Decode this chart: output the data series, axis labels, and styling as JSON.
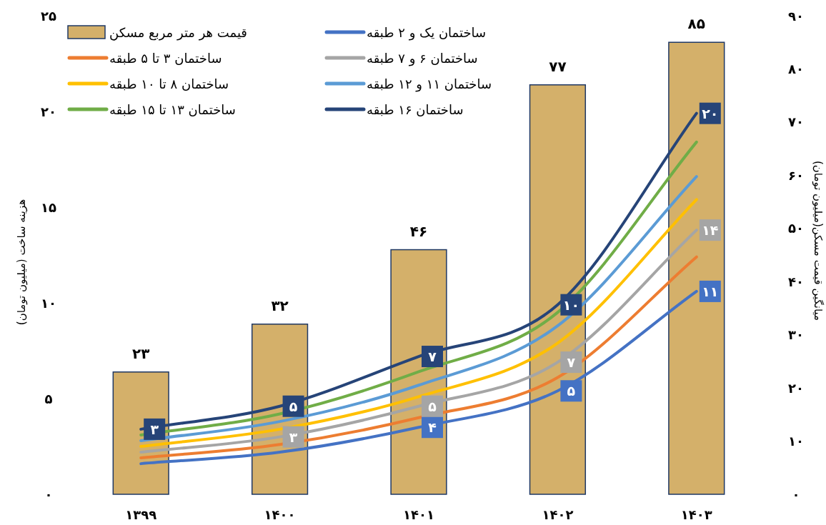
{
  "chart_data": {
    "type": "line",
    "categories": [
      "۱۳۹۹",
      "۱۴۰۰",
      "۱۴۰۱",
      "۱۴۰۲",
      "۱۴۰۳"
    ],
    "ylabel": "هزینه ساخت (میلیون تومان)",
    "y2label": "میانگین قیمت مسکن(میلیون تومان)",
    "ylim": [
      0,
      25
    ],
    "yticks": [
      {
        "value": 0,
        "label": "۰"
      },
      {
        "value": 5,
        "label": "۵"
      },
      {
        "value": 10,
        "label": "۱۰"
      },
      {
        "value": 15,
        "label": "۱۵"
      },
      {
        "value": 20,
        "label": "۲۰"
      },
      {
        "value": 25,
        "label": "۲۵"
      }
    ],
    "y2lim": [
      0,
      90
    ],
    "y2ticks": [
      {
        "value": 0,
        "label": "۰"
      },
      {
        "value": 10,
        "label": "۱۰"
      },
      {
        "value": 20,
        "label": "۲۰"
      },
      {
        "value": 30,
        "label": "۳۰"
      },
      {
        "value": 40,
        "label": "۴۰"
      },
      {
        "value": 50,
        "label": "۵۰"
      },
      {
        "value": 60,
        "label": "۶۰"
      },
      {
        "value": 70,
        "label": "۷۰"
      },
      {
        "value": 80,
        "label": "۸۰"
      },
      {
        "value": 90,
        "label": "۹۰"
      }
    ],
    "legend": "top",
    "series": [
      {
        "name": "قیمت هر متر مربع مسکن",
        "type": "bar",
        "axis": "y2",
        "color": "#d4b06a",
        "values": [
          23,
          32,
          46,
          77,
          85
        ],
        "value_labels": [
          "۲۳",
          "۳۲",
          "۴۶",
          "۷۷",
          "۸۵"
        ]
      },
      {
        "name": "ساختمان یک و ۲ طبقه",
        "color": "#4472c4",
        "marker": "square",
        "values": [
          1.6,
          2.2,
          3.5,
          5.4,
          10.6
        ],
        "value_labels": [
          null,
          null,
          "۴",
          "۵",
          "۱۱"
        ]
      },
      {
        "name": "ساختمان ۳ تا ۵ طبقه",
        "color": "#ed7d31",
        "values": [
          1.9,
          2.6,
          4.0,
          6.1,
          12.4
        ]
      },
      {
        "name": "ساختمان ۶ و ۷ طبقه",
        "color": "#a5a5a5",
        "marker": "square",
        "values": [
          2.2,
          3.0,
          4.6,
          6.9,
          13.8
        ],
        "value_labels": [
          null,
          "۳",
          "۵",
          "۷",
          "۱۴"
        ]
      },
      {
        "name": "ساختمان ۸ تا ۱۰ طبقه",
        "color": "#ffc000",
        "values": [
          2.5,
          3.4,
          5.1,
          7.9,
          15.4
        ]
      },
      {
        "name": "ساختمان ۱۱ و ۱۲ طبقه",
        "color": "#5b9bd5",
        "values": [
          2.8,
          3.8,
          5.7,
          8.8,
          16.6
        ]
      },
      {
        "name": "ساختمان ۱۳ تا ۱۵ طبقه",
        "color": "#70ad47",
        "values": [
          3.1,
          4.2,
          6.4,
          9.5,
          18.4
        ]
      },
      {
        "name": "ساختمان ۱۶ طبقه",
        "color": "#264478",
        "marker": "square",
        "values": [
          3.4,
          4.6,
          7.2,
          9.9,
          19.9
        ],
        "value_labels": [
          "۳",
          "۵",
          "۷",
          "۱۰",
          "۲۰"
        ]
      }
    ]
  }
}
